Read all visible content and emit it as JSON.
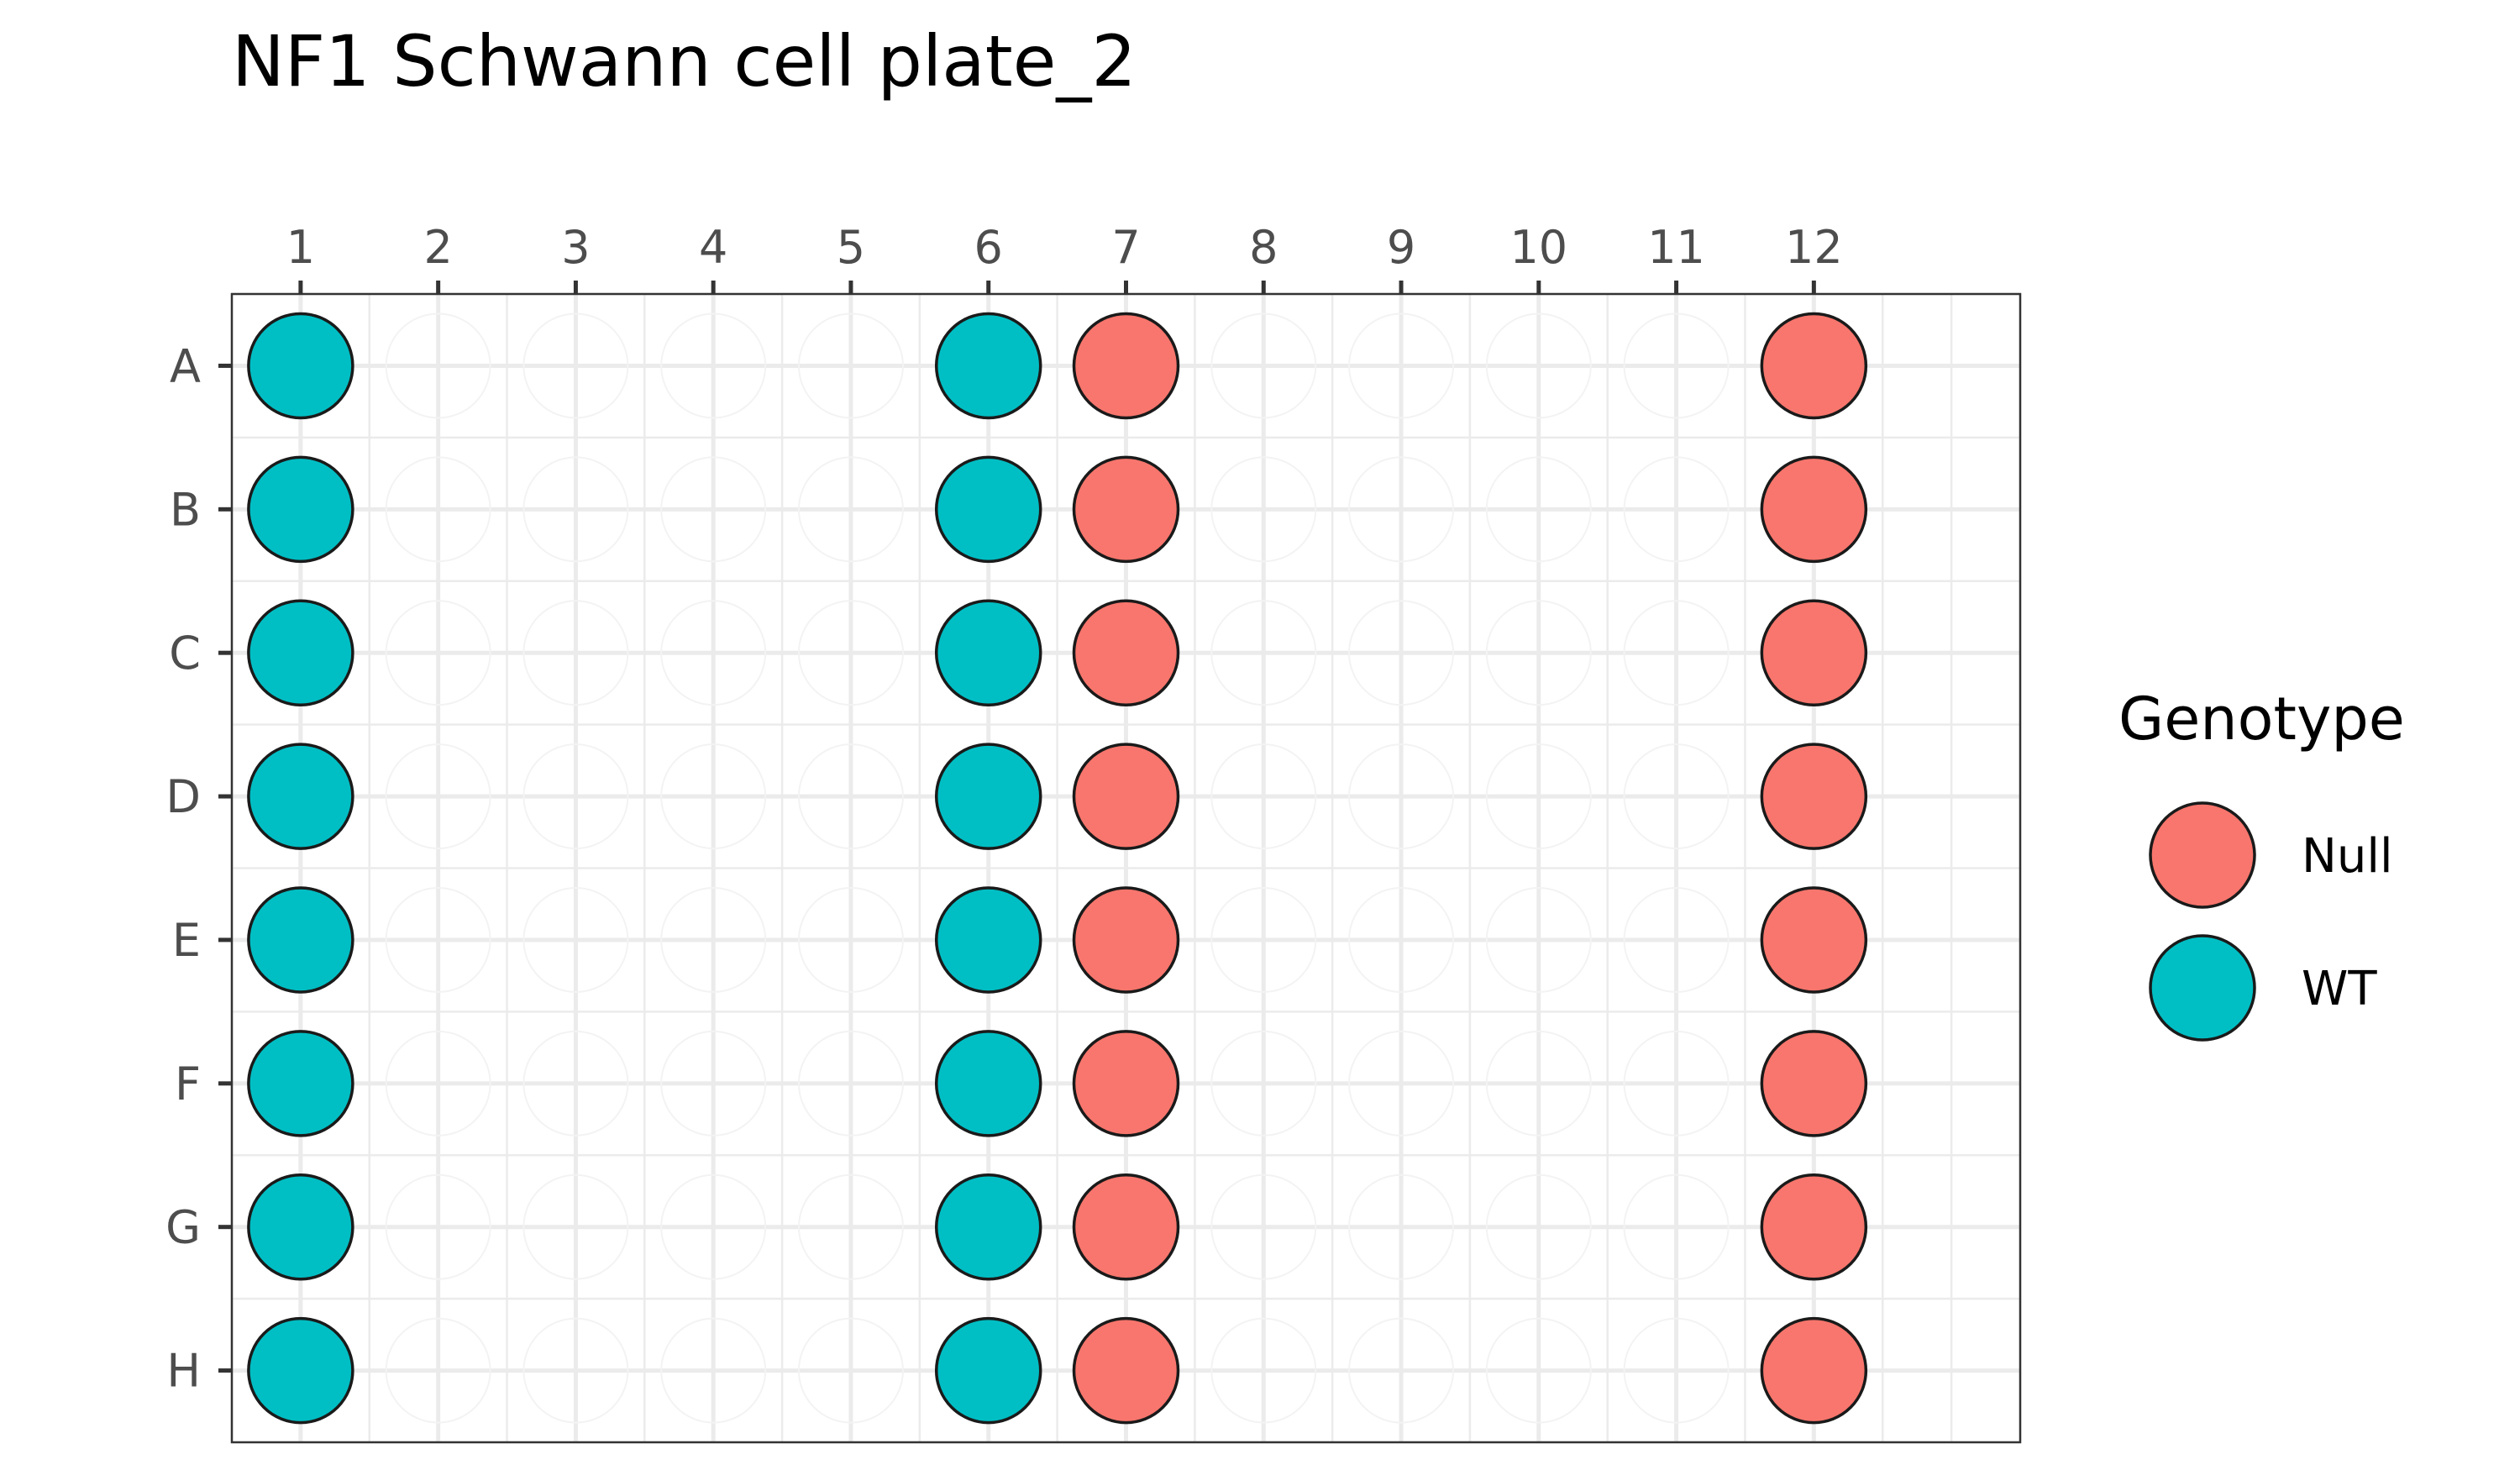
{
  "chart_data": {
    "type": "scatter",
    "title": "NF1 Schwann cell plate_2",
    "xlabel": "",
    "ylabel": "",
    "x_ticks": [
      "1",
      "2",
      "3",
      "4",
      "5",
      "6",
      "7",
      "8",
      "9",
      "10",
      "11",
      "12"
    ],
    "y_ticks": [
      "A",
      "B",
      "C",
      "D",
      "E",
      "F",
      "G",
      "H"
    ],
    "xlim": [
      0.5,
      13.5
    ],
    "ylim": [
      0.5,
      8.5
    ],
    "grid": true,
    "legend": {
      "title": "Genotype",
      "position": "right",
      "entries": [
        {
          "name": "Null",
          "color": "#F8766D"
        },
        {
          "name": "WT",
          "color": "#00BFC4"
        }
      ]
    },
    "series": [
      {
        "name": "Null",
        "color": "#F8766D",
        "points": [
          [
            "7",
            "A"
          ],
          [
            "7",
            "B"
          ],
          [
            "7",
            "C"
          ],
          [
            "7",
            "D"
          ],
          [
            "7",
            "E"
          ],
          [
            "7",
            "F"
          ],
          [
            "7",
            "G"
          ],
          [
            "7",
            "H"
          ],
          [
            "12",
            "A"
          ],
          [
            "12",
            "B"
          ],
          [
            "12",
            "C"
          ],
          [
            "12",
            "D"
          ],
          [
            "12",
            "E"
          ],
          [
            "12",
            "F"
          ],
          [
            "12",
            "G"
          ],
          [
            "12",
            "H"
          ]
        ]
      },
      {
        "name": "WT",
        "color": "#00BFC4",
        "points": [
          [
            "1",
            "A"
          ],
          [
            "1",
            "B"
          ],
          [
            "1",
            "C"
          ],
          [
            "1",
            "D"
          ],
          [
            "1",
            "E"
          ],
          [
            "1",
            "F"
          ],
          [
            "1",
            "G"
          ],
          [
            "1",
            "H"
          ],
          [
            "6",
            "A"
          ],
          [
            "6",
            "B"
          ],
          [
            "6",
            "C"
          ],
          [
            "6",
            "D"
          ],
          [
            "6",
            "E"
          ],
          [
            "6",
            "F"
          ],
          [
            "6",
            "G"
          ],
          [
            "6",
            "H"
          ]
        ]
      }
    ]
  }
}
